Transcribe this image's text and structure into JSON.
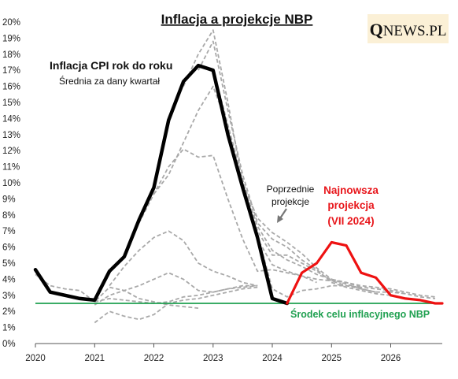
{
  "title": "Inflacja a projekcje NBP",
  "logo": {
    "q": "Q",
    "rest": "NEWS.PL"
  },
  "annotations": {
    "cpi_title": "Inflacja CPI rok do roku",
    "cpi_subtitle": "Średnia za dany kwartał",
    "previous_line1": "Poprzednie",
    "previous_line2": "projekcje",
    "latest_line1": "Najnowsza",
    "latest_line2": "projekcja",
    "latest_line3": "(VII 2024)",
    "target": "Środek celu inflacyjnego NBP"
  },
  "chart_data": {
    "type": "line",
    "title": "Inflacja a projekcje NBP",
    "xlabel": "",
    "ylabel": "",
    "xlim": [
      2020.0,
      2026.87
    ],
    "ylim": [
      0,
      20
    ],
    "xticks": [
      "2020",
      "2021",
      "2022",
      "2023",
      "2024",
      "2025",
      "2026"
    ],
    "yticks": [
      "0%",
      "1%",
      "2%",
      "3%",
      "4%",
      "5%",
      "6%",
      "7%",
      "8%",
      "9%",
      "10%",
      "11%",
      "12%",
      "13%",
      "14%",
      "15%",
      "16%",
      "17%",
      "18%",
      "19%",
      "20%"
    ],
    "grid": false,
    "colors": {
      "cpi": "#000000",
      "latest": "#ee1111",
      "previous": "#a9a9a9",
      "target": "#1fa050"
    },
    "target": 2.5,
    "cpi": {
      "name": "Inflacja CPI rok do roku",
      "x": [
        2020.0,
        2020.25,
        2020.5,
        2020.75,
        2021.0,
        2021.25,
        2021.5,
        2021.75,
        2022.0,
        2022.25,
        2022.5,
        2022.75,
        2023.0,
        2023.25,
        2023.5,
        2023.75,
        2024.0,
        2024.25
      ],
      "y": [
        4.6,
        3.2,
        3.0,
        2.8,
        2.7,
        4.5,
        5.4,
        7.7,
        9.7,
        13.9,
        16.3,
        17.3,
        17.0,
        13.0,
        9.7,
        6.6,
        2.8,
        2.5
      ]
    },
    "latest": {
      "name": "Najnowsza projekcja (VII 2024)",
      "x": [
        2024.25,
        2024.5,
        2024.75,
        2025.0,
        2025.25,
        2025.5,
        2025.75,
        2026.0,
        2026.25,
        2026.5,
        2026.75,
        2026.87
      ],
      "y": [
        2.5,
        4.4,
        5.0,
        6.3,
        6.1,
        4.4,
        4.1,
        3.0,
        2.8,
        2.7,
        2.5,
        2.5
      ]
    },
    "previous": [
      {
        "x": [
          2020.0,
          2020.25,
          2020.5,
          2020.75,
          2021.0,
          2021.25,
          2021.5,
          2021.75,
          2022.0,
          2022.25,
          2022.5,
          2022.75
        ],
        "y": [
          4.3,
          3.6,
          3.4,
          3.3,
          2.6,
          3.5,
          3.3,
          2.8,
          2.6,
          2.4,
          2.3,
          2.2
        ]
      },
      {
        "x": [
          2021.0,
          2021.25,
          2021.5,
          2021.75,
          2022.0,
          2022.25,
          2022.5,
          2022.75,
          2023.0,
          2023.25,
          2023.5,
          2023.75
        ],
        "y": [
          1.3,
          2.0,
          1.7,
          1.5,
          1.8,
          2.5,
          2.7,
          2.8,
          3.0,
          3.2,
          3.4,
          3.5
        ]
      },
      {
        "x": [
          2021.0,
          2021.25,
          2021.5,
          2021.75,
          2022.0,
          2022.25,
          2022.5,
          2022.75,
          2023.0,
          2023.25,
          2023.5,
          2023.75
        ],
        "y": [
          2.6,
          2.8,
          2.7,
          2.6,
          2.5,
          2.6,
          2.9,
          3.0,
          3.2,
          3.4,
          3.5,
          3.6
        ]
      },
      {
        "x": [
          2021.0,
          2021.25,
          2021.5,
          2021.75,
          2022.0,
          2022.25,
          2022.5,
          2022.75,
          2023.0,
          2023.25,
          2023.5,
          2023.75
        ],
        "y": [
          2.4,
          3.0,
          3.3,
          3.6,
          4.0,
          4.4,
          4.0,
          3.3,
          3.2,
          3.4,
          3.6,
          3.6
        ]
      },
      {
        "x": [
          2021.25,
          2021.5,
          2021.75,
          2022.0,
          2022.25,
          2022.5,
          2022.75,
          2023.0,
          2023.25,
          2023.5,
          2023.75
        ],
        "y": [
          3.6,
          4.8,
          5.8,
          6.6,
          7.0,
          6.4,
          5.0,
          4.5,
          4.2,
          3.8,
          3.6
        ]
      },
      {
        "x": [
          2021.75,
          2022.0,
          2022.25,
          2022.5,
          2022.75,
          2023.0,
          2023.25,
          2023.5,
          2023.75,
          2024.0,
          2024.25,
          2024.5,
          2024.75
        ],
        "y": [
          7.5,
          9.3,
          11.0,
          12.1,
          11.6,
          11.7,
          9.0,
          6.5,
          4.5,
          4.6,
          4.4,
          4.2,
          3.8
        ]
      },
      {
        "x": [
          2022.0,
          2022.25,
          2022.5,
          2022.75,
          2023.0,
          2023.25,
          2023.5,
          2023.75,
          2024.0,
          2024.25,
          2024.5,
          2024.75,
          2025.0,
          2025.25,
          2025.5
        ],
        "y": [
          9.3,
          10.5,
          12.5,
          14.5,
          16.0,
          13.5,
          10.0,
          7.3,
          5.8,
          5.2,
          4.8,
          4.3,
          4.0,
          3.8,
          3.5
        ]
      },
      {
        "x": [
          2022.5,
          2022.75,
          2023.0,
          2023.25,
          2023.5,
          2023.75,
          2024.0,
          2024.25,
          2024.5,
          2024.75,
          2025.0,
          2025.25,
          2025.5,
          2025.75
        ],
        "y": [
          16.0,
          18.0,
          19.5,
          15.0,
          10.0,
          7.8,
          6.9,
          6.3,
          5.6,
          4.7,
          4.0,
          3.7,
          3.4,
          3.2
        ]
      },
      {
        "x": [
          2022.75,
          2023.0,
          2023.25,
          2023.5,
          2023.75,
          2024.0,
          2024.25,
          2024.5,
          2024.75,
          2025.0,
          2025.25,
          2025.5,
          2025.75,
          2026.0
        ],
        "y": [
          17.0,
          18.8,
          14.5,
          10.5,
          7.5,
          6.5,
          6.0,
          5.2,
          4.6,
          3.8,
          3.5,
          3.3,
          3.1,
          3.0
        ]
      },
      {
        "x": [
          2023.0,
          2023.25,
          2023.5,
          2023.75,
          2024.0,
          2024.25,
          2024.5,
          2024.75,
          2025.0,
          2025.25,
          2025.5,
          2025.75,
          2026.0,
          2026.25
        ],
        "y": [
          17.1,
          13.6,
          10.2,
          7.0,
          5.5,
          5.5,
          5.0,
          4.5,
          3.9,
          3.6,
          3.4,
          3.2,
          3.2,
          3.1
        ]
      },
      {
        "x": [
          2023.25,
          2023.5,
          2023.75,
          2024.0,
          2024.25,
          2024.5,
          2024.75,
          2025.0,
          2025.25,
          2025.5,
          2025.75,
          2026.0,
          2026.25,
          2026.5,
          2026.75
        ],
        "y": [
          13.1,
          9.8,
          6.5,
          4.9,
          4.5,
          4.2,
          4.0,
          3.9,
          3.8,
          3.6,
          3.5,
          3.4,
          3.2,
          3.0,
          2.9
        ]
      },
      {
        "x": [
          2023.5,
          2023.75,
          2024.0,
          2024.25,
          2024.5,
          2024.75,
          2025.0,
          2025.25,
          2025.5,
          2025.75,
          2026.0,
          2026.25,
          2026.5,
          2026.75
        ],
        "y": [
          9.7,
          6.8,
          3.4,
          2.9,
          3.3,
          3.4,
          3.6,
          3.6,
          3.5,
          3.4,
          3.3,
          3.1,
          2.9,
          2.8
        ]
      }
    ]
  }
}
